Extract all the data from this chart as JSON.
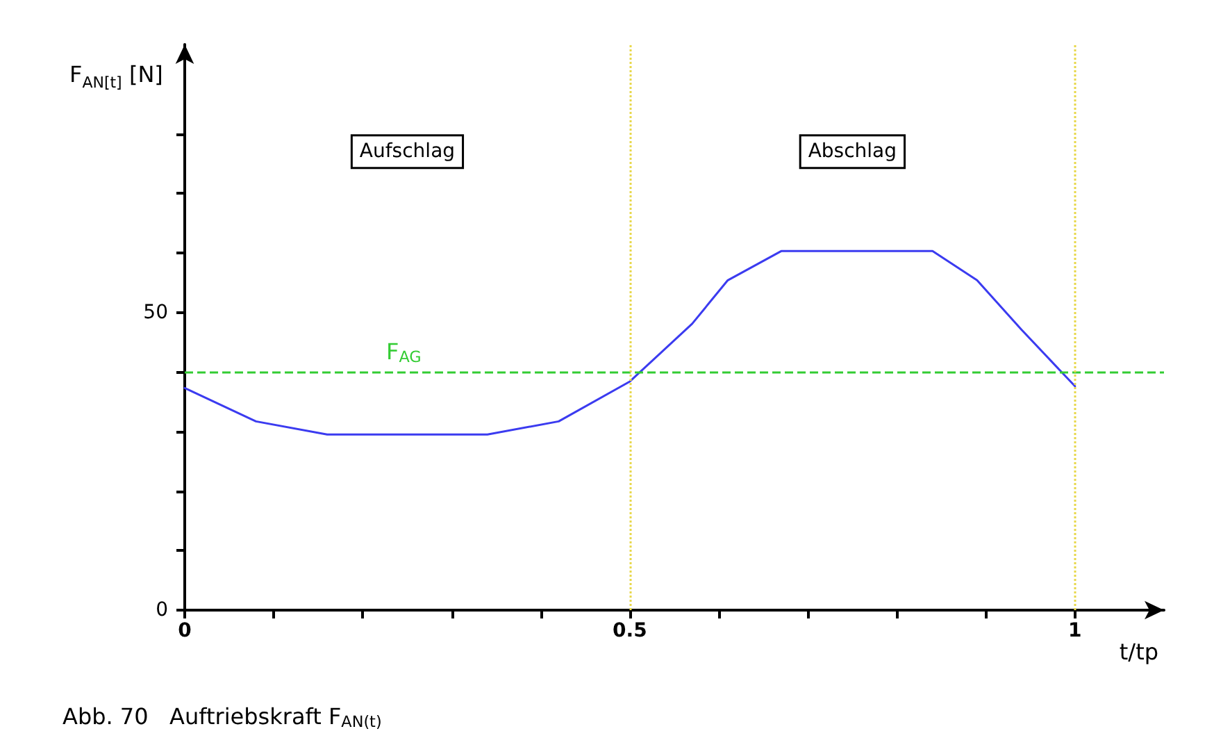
{
  "chart_data": {
    "type": "line",
    "xlabel": "t/tp",
    "ylabel": "F$_{AN[t]}$ [N]",
    "x": [
      0,
      0.08,
      0.16,
      0.34,
      0.42,
      0.5,
      0.57,
      0.61,
      0.67,
      0.84,
      0.89,
      0.94,
      1.0
    ],
    "series": [
      {
        "color": "#3b3bf0",
        "values": [
          37.3,
          31.7,
          29.5,
          29.5,
          31.7,
          38.4,
          48.1,
          55.4,
          60.3,
          60.3,
          55.4,
          47.1,
          37.6
        ]
      }
    ],
    "xlim": [
      0,
      1.1
    ],
    "xticks": [
      0,
      {
        "value": 0.1,
        "label": null
      },
      {
        "value": 0.2,
        "label": null
      },
      {
        "value": 0.3,
        "label": null
      },
      {
        "value": 0.4,
        "label": null
      },
      0.5,
      {
        "value": 0.6,
        "label": null
      },
      {
        "value": 0.7,
        "label": null
      },
      {
        "value": 0.8,
        "label": null
      },
      {
        "value": 0.9,
        "label": null
      },
      1
    ],
    "ylim": [
      0,
      95
    ],
    "yticks": [
      0,
      {
        "value": 10,
        "label": null
      },
      {
        "value": 20,
        "label": null
      },
      {
        "value": 30,
        "label": null
      },
      {
        "value": 40,
        "label": null
      },
      50,
      {
        "value": 60,
        "label": null
      },
      {
        "value": 70,
        "label": null
      },
      {
        "value": 80,
        "label": null
      }
    ],
    "ref_lines": [
      {
        "axis": "y",
        "value": 40,
        "label": "F$_{AG}$",
        "color": "#33cc33",
        "line_style": "dashed"
      },
      {
        "axis": "x",
        "value": 0.5,
        "color": "#e8d84a",
        "line_style": "dotted"
      },
      {
        "axis": "x",
        "value": 1,
        "color": "#e8d84a",
        "line_style": "dotted"
      }
    ],
    "annotations": [
      "Aufschlag",
      "Abschlag",
      "Abb. 70   Auftriebskraft F$_{AN(t)}$"
    ],
    "grid": false,
    "marker": "none",
    "line_style": "solid"
  }
}
